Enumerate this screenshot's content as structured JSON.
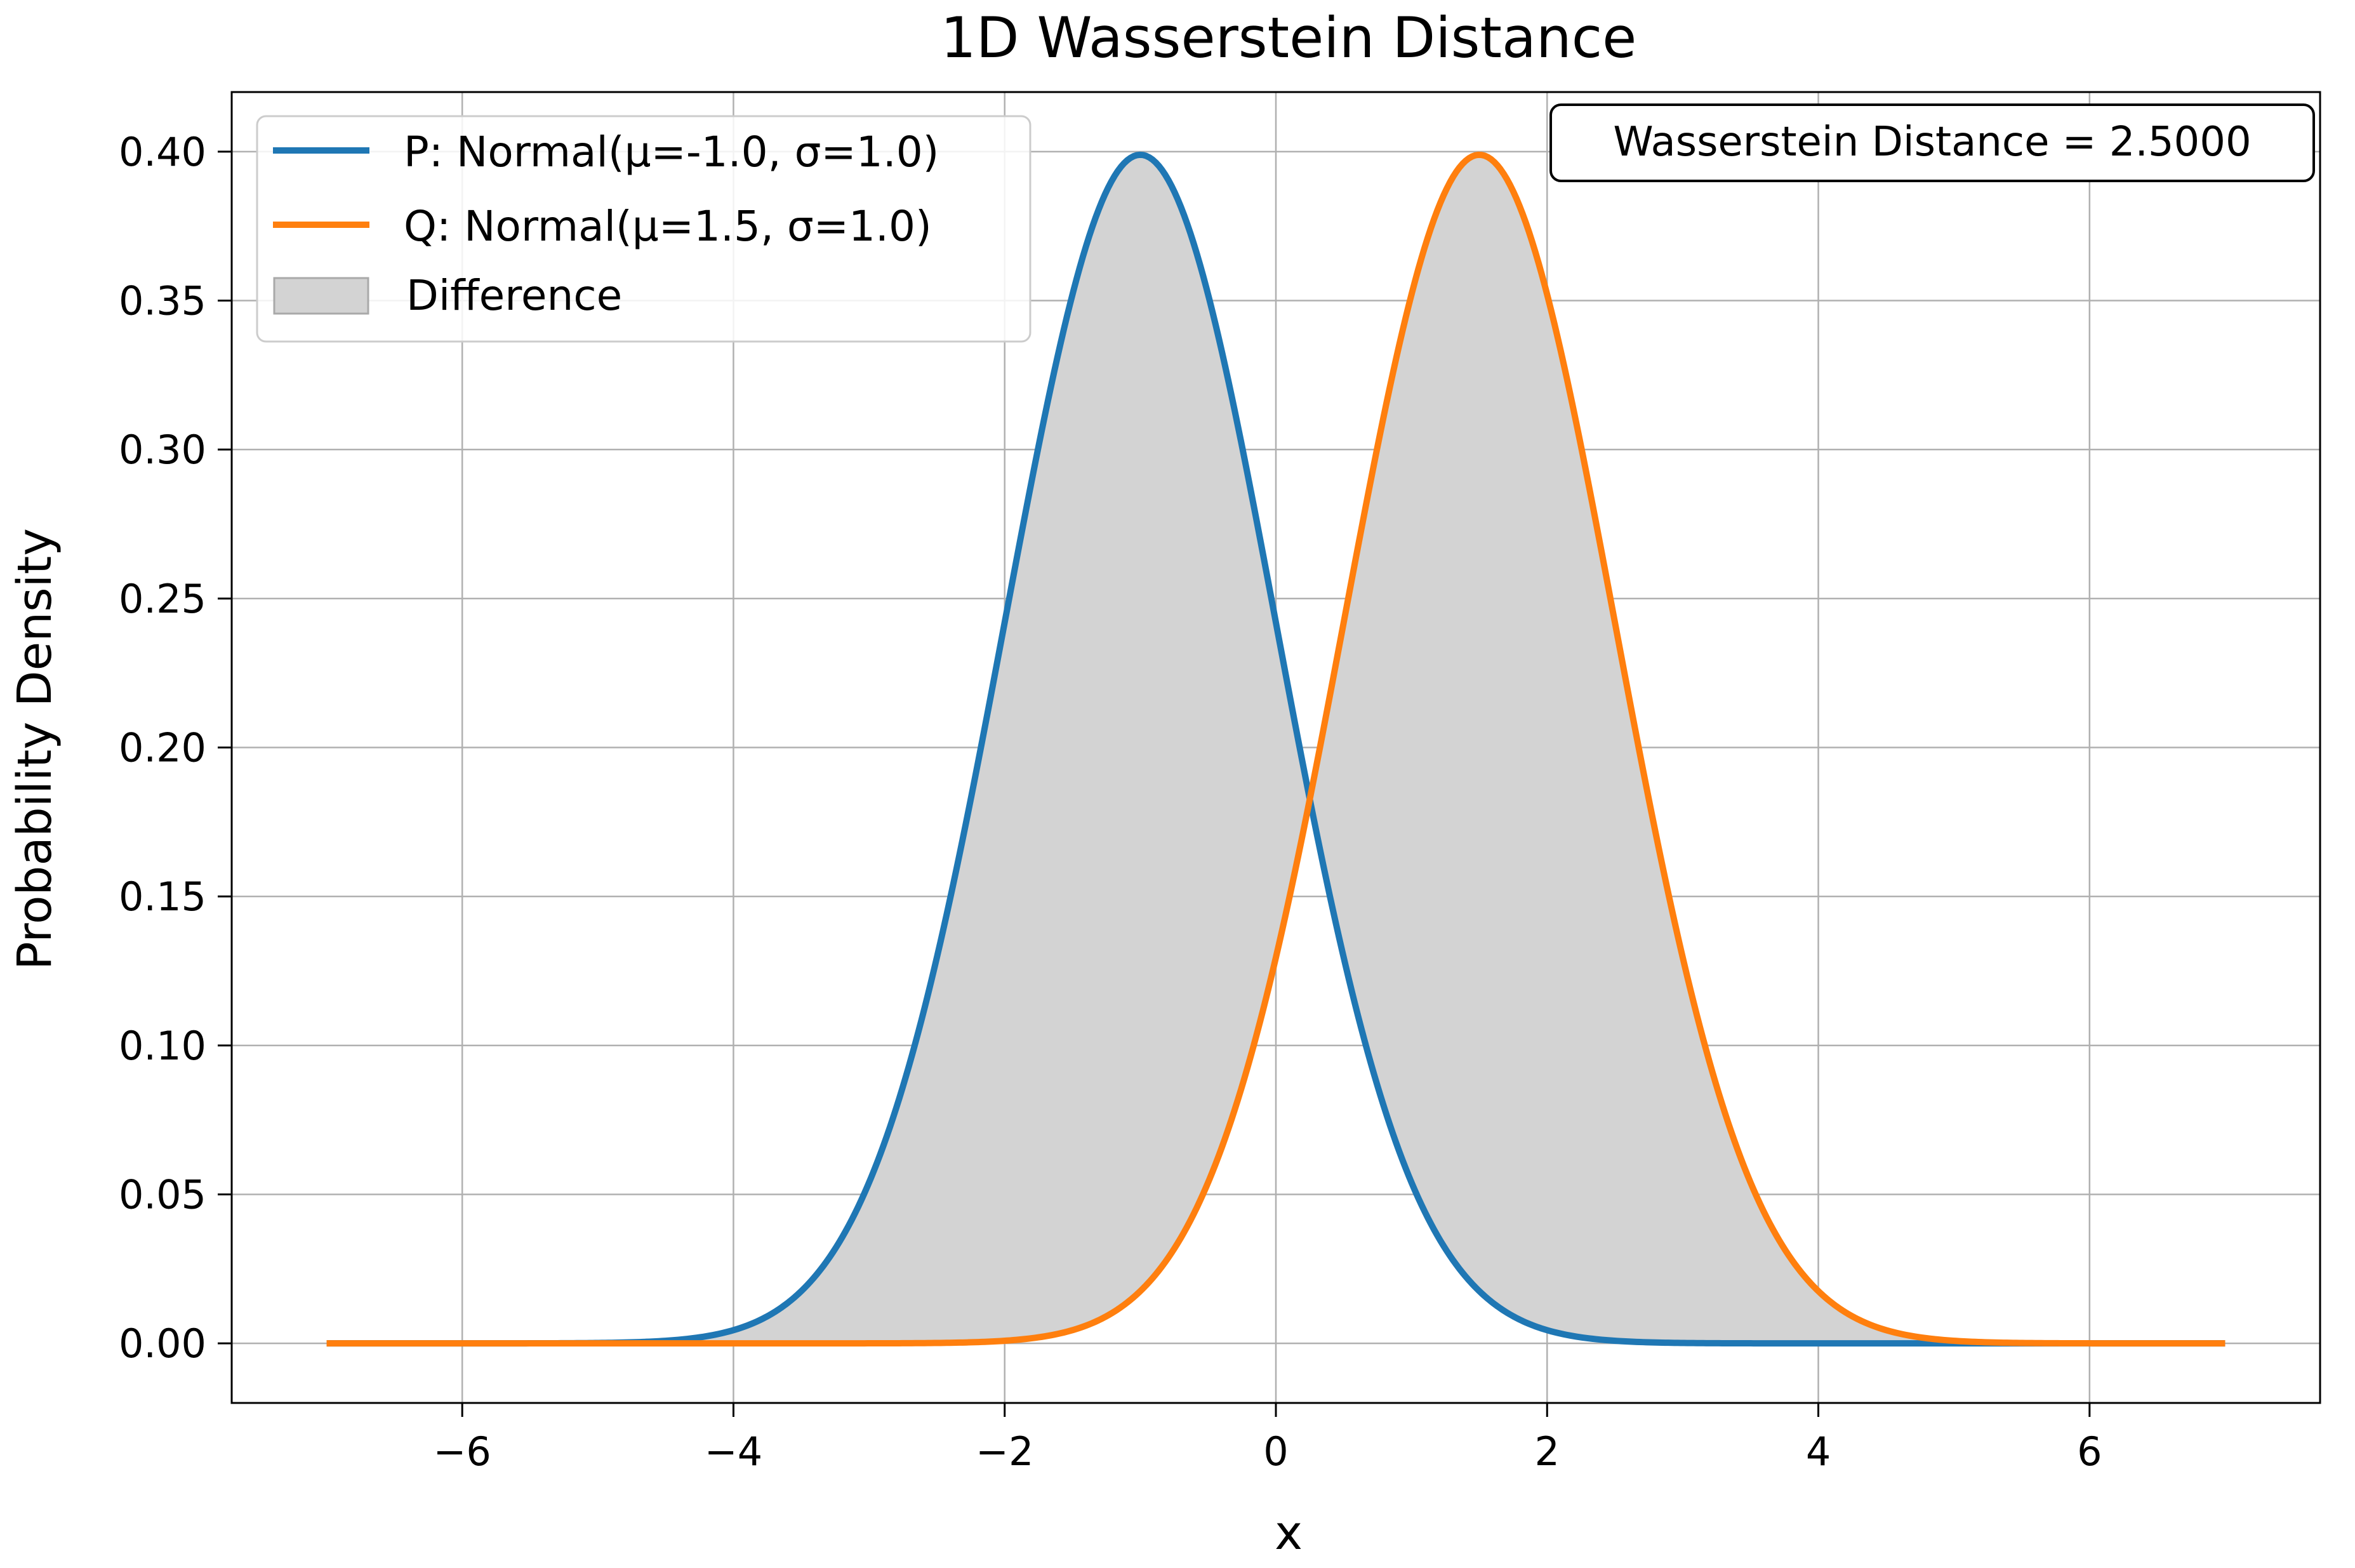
{
  "chart_data": {
    "type": "line",
    "title": "1D Wasserstein Distance",
    "xlabel": "x",
    "ylabel": "Probability Density",
    "xlim": [
      -7.7,
      7.7
    ],
    "ylim": [
      -0.02,
      0.42
    ],
    "xticks": [
      -6,
      -4,
      -2,
      0,
      2,
      4,
      6
    ],
    "xtick_labels": [
      "−6",
      "−4",
      "−2",
      "0",
      "2",
      "4",
      "6"
    ],
    "yticks": [
      0.0,
      0.05,
      0.1,
      0.15,
      0.2,
      0.25,
      0.3,
      0.35,
      0.4
    ],
    "ytick_labels": [
      "0.00",
      "0.05",
      "0.10",
      "0.15",
      "0.20",
      "0.25",
      "0.30",
      "0.35",
      "0.40"
    ],
    "grid": true,
    "legend_position": "top-left",
    "x_range": [
      -7,
      7
    ],
    "series": [
      {
        "name": "P: Normal(μ=-1.0, σ=1.0)",
        "mean": -1.0,
        "std": 1.0,
        "color": "#1f77b4"
      },
      {
        "name": "Q: Normal(μ=1.5, σ=1.0)",
        "mean": 1.5,
        "std": 1.0,
        "color": "#ff7f0e"
      }
    ],
    "fill": {
      "name": "Difference",
      "between": [
        "P",
        "Q"
      ],
      "color": "#d3d3d3",
      "edge_color": "#a9a9a9"
    },
    "annotation": {
      "text": "Wasserstein Distance = 2.5000",
      "position": "top-right"
    }
  }
}
